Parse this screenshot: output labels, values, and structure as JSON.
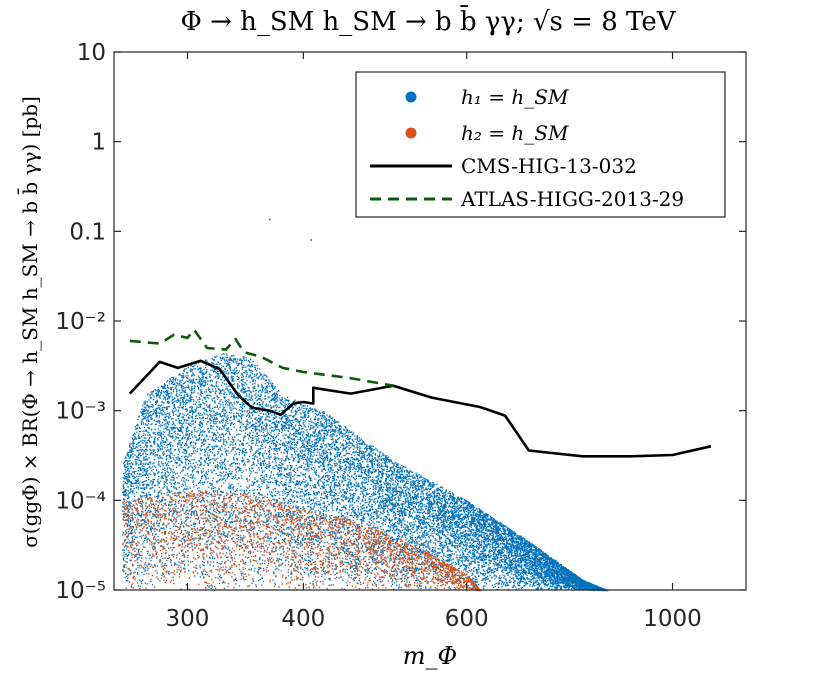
{
  "chart_data": {
    "type": "scatter",
    "title": "Φ → h_SM h_SM → b b̄ γγ; √s = 8 TeV",
    "xlabel": "m_Φ",
    "ylabel": "σ(ggΦ) × BR(Φ → h_SM h_SM → b b̄ γγ) [pb]",
    "xscale": "log",
    "yscale": "log",
    "xlim": [
      250,
      1200
    ],
    "ylim": [
      1e-05,
      10
    ],
    "grid": false,
    "legend_position": "top-right",
    "x_ticks": [
      {
        "value": 300,
        "label": "300"
      },
      {
        "value": 400,
        "label": "400"
      },
      {
        "value": 600,
        "label": "600"
      },
      {
        "value": 1000,
        "label": "1000"
      }
    ],
    "y_ticks": [
      {
        "value": 1e-05,
        "label": "10⁻⁵"
      },
      {
        "value": 0.0001,
        "label": "10⁻⁴"
      },
      {
        "value": 0.001,
        "label": "10⁻³"
      },
      {
        "value": 0.01,
        "label": "10⁻²"
      },
      {
        "value": 0.1,
        "label": "0.1"
      },
      {
        "value": 1,
        "label": "1"
      },
      {
        "value": 10,
        "label": "10"
      }
    ],
    "series": [
      {
        "name": "h₁ = h_SM",
        "kind": "scatter",
        "color": "#0072BD",
        "envelope": [
          [
            255,
            0.00025
          ],
          [
            270,
            0.0015
          ],
          [
            300,
            0.0032
          ],
          [
            330,
            0.0045
          ],
          [
            350,
            0.004
          ],
          [
            380,
            0.0015
          ],
          [
            420,
            0.001
          ],
          [
            500,
            0.00028
          ],
          [
            600,
            0.0001
          ],
          [
            700,
            3.5e-05
          ],
          [
            800,
            1.3e-05
          ],
          [
            850,
            1e-05
          ]
        ],
        "outliers": [
          [
            368,
            0.135
          ],
          [
            408,
            0.08
          ]
        ]
      },
      {
        "name": "h₂ = h_SM",
        "kind": "scatter",
        "color": "#D95319",
        "envelope": [
          [
            255,
            0.0001
          ],
          [
            300,
            0.00013
          ],
          [
            350,
            0.00012
          ],
          [
            400,
            8e-05
          ],
          [
            450,
            6e-05
          ],
          [
            500,
            4e-05
          ],
          [
            550,
            2.5e-05
          ],
          [
            600,
            1.5e-05
          ],
          [
            620,
            1e-05
          ]
        ]
      },
      {
        "name": "CMS-HIG-13-032",
        "kind": "line",
        "color": "#000000",
        "dash": "solid",
        "points": [
          [
            260,
            0.00155
          ],
          [
            280,
            0.0035
          ],
          [
            293,
            0.003
          ],
          [
            310,
            0.0036
          ],
          [
            325,
            0.0029
          ],
          [
            340,
            0.0015
          ],
          [
            352,
            0.00108
          ],
          [
            368,
            0.001
          ],
          [
            378,
            0.0009
          ],
          [
            390,
            0.0012
          ],
          [
            400,
            0.00125
          ],
          [
            410,
            0.0012
          ],
          [
            410,
            0.0018
          ],
          [
            450,
            0.00155
          ],
          [
            500,
            0.0019
          ],
          [
            550,
            0.0014
          ],
          [
            620,
            0.0011
          ],
          [
            660,
            0.00088
          ],
          [
            700,
            0.00036
          ],
          [
            800,
            0.00031
          ],
          [
            900,
            0.00031
          ],
          [
            1000,
            0.00032
          ],
          [
            1100,
            0.0004
          ]
        ]
      },
      {
        "name": "ATLAS-HIGG-2013-29",
        "kind": "line",
        "color": "#0B5B0B",
        "dash": "dashed",
        "points": [
          [
            260,
            0.006
          ],
          [
            280,
            0.0056
          ],
          [
            290,
            0.007
          ],
          [
            300,
            0.0065
          ],
          [
            305,
            0.008
          ],
          [
            315,
            0.005
          ],
          [
            330,
            0.0048
          ],
          [
            338,
            0.0063
          ],
          [
            345,
            0.0045
          ],
          [
            360,
            0.004
          ],
          [
            380,
            0.003
          ],
          [
            400,
            0.0027
          ],
          [
            450,
            0.0023
          ],
          [
            500,
            0.0019
          ]
        ]
      }
    ]
  }
}
